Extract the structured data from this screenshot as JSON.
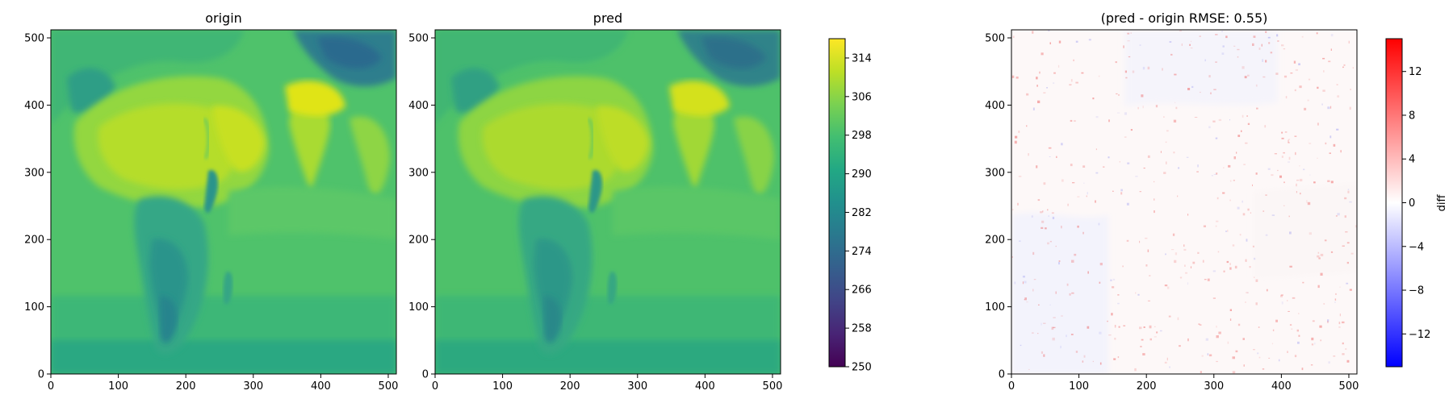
{
  "chart_data": [
    {
      "type": "heatmap",
      "title": "origin",
      "xlim": [
        0,
        512
      ],
      "ylim": [
        0,
        512
      ],
      "xticks": [
        0,
        100,
        200,
        300,
        400,
        500
      ],
      "yticks": [
        0,
        100,
        200,
        300,
        400,
        500
      ],
      "xtick_labels": [
        "0",
        "100",
        "200",
        "300",
        "400",
        "500"
      ],
      "ytick_labels": [
        "0",
        "100",
        "200",
        "300",
        "400",
        "500"
      ],
      "colormap": "viridis",
      "value_range": [
        250,
        318
      ],
      "summary": "temperature-like field: Africa, Arabia and India warmest (~306-314), oceans ~296-300, Tibetan plateau and southern Africa coolest (~276-286)"
    },
    {
      "type": "heatmap",
      "title": "pred",
      "xlim": [
        0,
        512
      ],
      "ylim": [
        0,
        512
      ],
      "xticks": [
        0,
        100,
        200,
        300,
        400,
        500
      ],
      "yticks": [
        0,
        100,
        200,
        300,
        400,
        500
      ],
      "xtick_labels": [
        "0",
        "100",
        "200",
        "300",
        "400",
        "500"
      ],
      "ytick_labels": [
        "0",
        "100",
        "200",
        "300",
        "400",
        "500"
      ],
      "colormap": "viridis",
      "value_range": [
        250,
        318
      ],
      "colorbar": {
        "ticks": [
          250,
          258,
          266,
          274,
          282,
          290,
          298,
          306,
          314
        ],
        "tick_labels": [
          "250",
          "258",
          "266",
          "274",
          "282",
          "290",
          "298",
          "306",
          "314"
        ]
      }
    },
    {
      "type": "heatmap",
      "title": "(pred - origin RMSE: 0.55)",
      "xlim": [
        0,
        512
      ],
      "ylim": [
        0,
        512
      ],
      "xticks": [
        0,
        100,
        200,
        300,
        400,
        500
      ],
      "yticks": [
        0,
        100,
        200,
        300,
        400,
        500
      ],
      "xtick_labels": [
        "0",
        "100",
        "200",
        "300",
        "400",
        "500"
      ],
      "ytick_labels": [
        "0",
        "100",
        "200",
        "300",
        "400",
        "500"
      ],
      "colormap": "bwr",
      "value_range": [
        -15,
        15
      ],
      "rmse": 0.55,
      "colorbar": {
        "label": "diff",
        "ticks": [
          -12,
          -8,
          -4,
          0,
          4,
          8,
          12
        ],
        "tick_labels": [
          "−12",
          "−8",
          "−4",
          "0",
          "4",
          "8",
          "12"
        ]
      }
    }
  ],
  "colors": {
    "viridis_stops": [
      "#440154",
      "#482475",
      "#414487",
      "#355f8d",
      "#2a788e",
      "#21908d",
      "#22a884",
      "#42be71",
      "#7ad151",
      "#bddf26",
      "#fde725"
    ],
    "bwr_stops": [
      "#0000ff",
      "#ffffff",
      "#ff0000"
    ],
    "ocean": "#52c569",
    "land_warm": "#a6db35",
    "land_hot": "#d8e219",
    "land_cool": "#2a9f88",
    "plateau": "#2c728e"
  }
}
